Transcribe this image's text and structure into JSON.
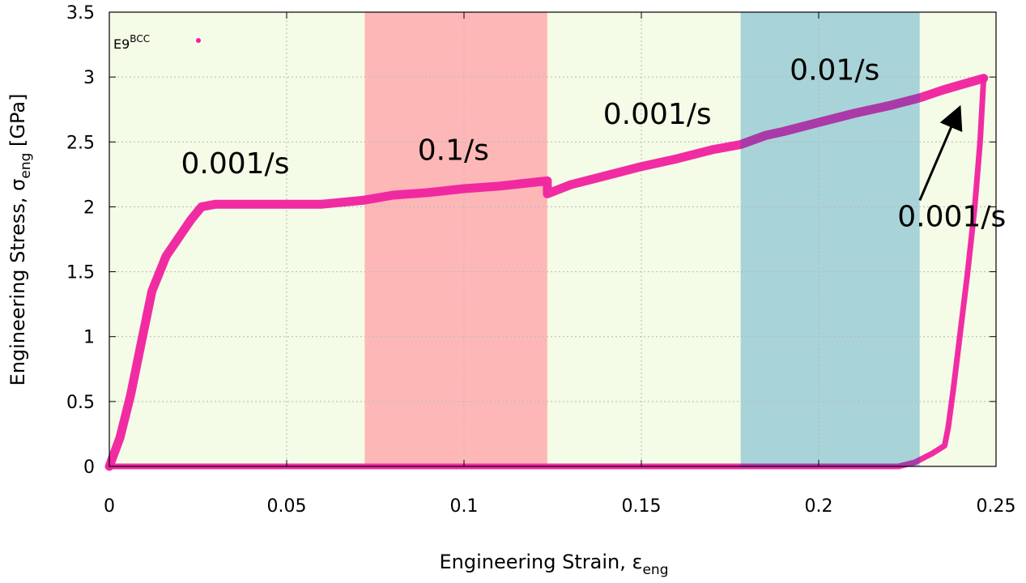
{
  "chart_data": {
    "type": "scatter",
    "xlabel": "Engineering Strain, ε",
    "xlabel_sub": "eng",
    "ylabel": "Engineering Stress, σ",
    "ylabel_sub": "eng",
    "ylabel_unit": " [GPa]",
    "xlim": [
      0,
      0.25
    ],
    "ylim": [
      0,
      3.5
    ],
    "xticks": [
      0,
      0.05,
      0.1,
      0.15,
      0.2,
      0.25
    ],
    "xtick_labels": [
      "0",
      "0.05",
      "0.1",
      "0.15",
      "0.2",
      "0.25"
    ],
    "yticks": [
      0,
      0.5,
      1,
      1.5,
      2,
      2.5,
      3,
      3.5
    ],
    "ytick_labels": [
      "0",
      "0.5",
      "1",
      "1.5",
      "2",
      "2.5",
      "3",
      "3.5"
    ],
    "grid": true,
    "legend": {
      "label": "E9",
      "label_sup": "BCC",
      "position": "top-left"
    },
    "regions": [
      {
        "x0": 0.0,
        "x1": 0.072,
        "rate": "0.001/s",
        "color": "#f4fbe6"
      },
      {
        "x0": 0.072,
        "x1": 0.1235,
        "rate": "0.1/s",
        "color": "#feb7b7"
      },
      {
        "x0": 0.1235,
        "x1": 0.178,
        "rate": "0.001/s",
        "color": "#f4fbe6"
      },
      {
        "x0": 0.178,
        "x1": 0.2285,
        "rate": "0.01/s",
        "color": "#a8d3d8"
      },
      {
        "x0": 0.2285,
        "x1": 0.25,
        "rate": "0.001/s",
        "color": "#f4fbe6"
      }
    ],
    "annotations": [
      {
        "text": "0.001/s",
        "x": 0.0355,
        "y": 2.26
      },
      {
        "text": "0.1/s",
        "x": 0.097,
        "y": 2.36
      },
      {
        "text": "0.001/s",
        "x": 0.1545,
        "y": 2.64
      },
      {
        "text": "0.01/s",
        "x": 0.2045,
        "y": 2.98
      },
      {
        "text": "0.001/s",
        "x": 0.2375,
        "y": 1.85
      }
    ],
    "arrow": {
      "from": [
        0.2285,
        2.05
      ],
      "to": [
        0.2395,
        2.75
      ]
    },
    "series": [
      {
        "name": "E9BCC",
        "color": "#f0219f",
        "loading": [
          [
            0.0,
            0.0
          ],
          [
            0.003,
            0.22
          ],
          [
            0.006,
            0.55
          ],
          [
            0.009,
            0.95
          ],
          [
            0.012,
            1.35
          ],
          [
            0.016,
            1.62
          ],
          [
            0.02,
            1.78
          ],
          [
            0.023,
            1.9
          ],
          [
            0.026,
            2.0
          ],
          [
            0.03,
            2.02
          ],
          [
            0.04,
            2.02
          ],
          [
            0.05,
            2.02
          ],
          [
            0.06,
            2.02
          ],
          [
            0.0715,
            2.05
          ],
          [
            0.08,
            2.09
          ],
          [
            0.09,
            2.11
          ],
          [
            0.1,
            2.14
          ],
          [
            0.11,
            2.16
          ],
          [
            0.1235,
            2.2
          ],
          [
            0.1235,
            2.1
          ],
          [
            0.13,
            2.17
          ],
          [
            0.14,
            2.24
          ],
          [
            0.15,
            2.31
          ],
          [
            0.16,
            2.37
          ],
          [
            0.17,
            2.44
          ],
          [
            0.178,
            2.48
          ],
          [
            0.185,
            2.55
          ],
          [
            0.19,
            2.58
          ],
          [
            0.2,
            2.65
          ],
          [
            0.21,
            2.72
          ],
          [
            0.22,
            2.78
          ],
          [
            0.2285,
            2.84
          ],
          [
            0.235,
            2.9
          ],
          [
            0.24,
            2.94
          ],
          [
            0.2465,
            2.99
          ]
        ],
        "unloading": [
          [
            0.2465,
            2.99
          ],
          [
            0.2455,
            2.5
          ],
          [
            0.244,
            2.0
          ],
          [
            0.242,
            1.5
          ],
          [
            0.24,
            1.05
          ],
          [
            0.238,
            0.6
          ],
          [
            0.2365,
            0.3
          ],
          [
            0.2355,
            0.16
          ],
          [
            0.232,
            0.1
          ],
          [
            0.227,
            0.03
          ],
          [
            0.2225,
            0.0
          ],
          [
            0.15,
            0.0
          ],
          [
            0.1,
            0.0
          ],
          [
            0.05,
            0.0
          ],
          [
            0.0,
            0.0
          ]
        ]
      }
    ]
  }
}
